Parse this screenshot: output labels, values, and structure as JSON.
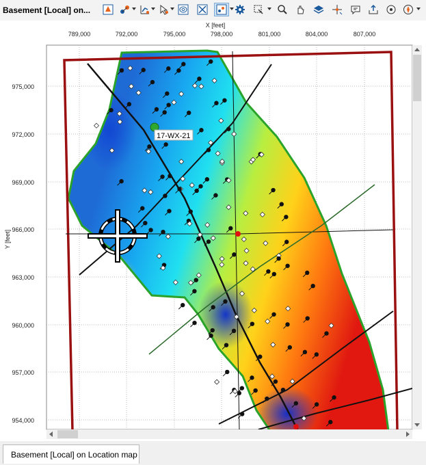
{
  "window": {
    "title": "Basement [Local] on..."
  },
  "toolbar": {
    "icons": [
      "fill-polygon-icon",
      "select-data-icon",
      "chart-select-icon",
      "pointer-select-icon",
      "contour-icon",
      "close-window-icon",
      "active-map-tool-icon",
      "settings-gear-icon",
      "zoom-window-icon",
      "search-icon",
      "pan-icon",
      "layers-icon",
      "crosshair-icon",
      "comment-icon",
      "export-icon",
      "measure-icon",
      "compass-icon"
    ]
  },
  "map": {
    "x_axis_label": "X [feet]",
    "y_axis_label": "Y [feet]",
    "x_ticks": [
      "789,000",
      "792,000",
      "795,000",
      "798,000",
      "801,000",
      "804,000",
      "807,000"
    ],
    "y_ticks": [
      "975,000",
      "972,000",
      "969,000",
      "966,000",
      "963,000",
      "960,000",
      "957,000",
      "954,000"
    ],
    "well_label": "17-WX-21",
    "colors": {
      "boundary": "#9a1010",
      "outline": "#2aa32a",
      "well_marker": "#2ea82e",
      "red_point": "#e01010"
    }
  },
  "tab": {
    "label": "Basement [Local] on Location map"
  }
}
